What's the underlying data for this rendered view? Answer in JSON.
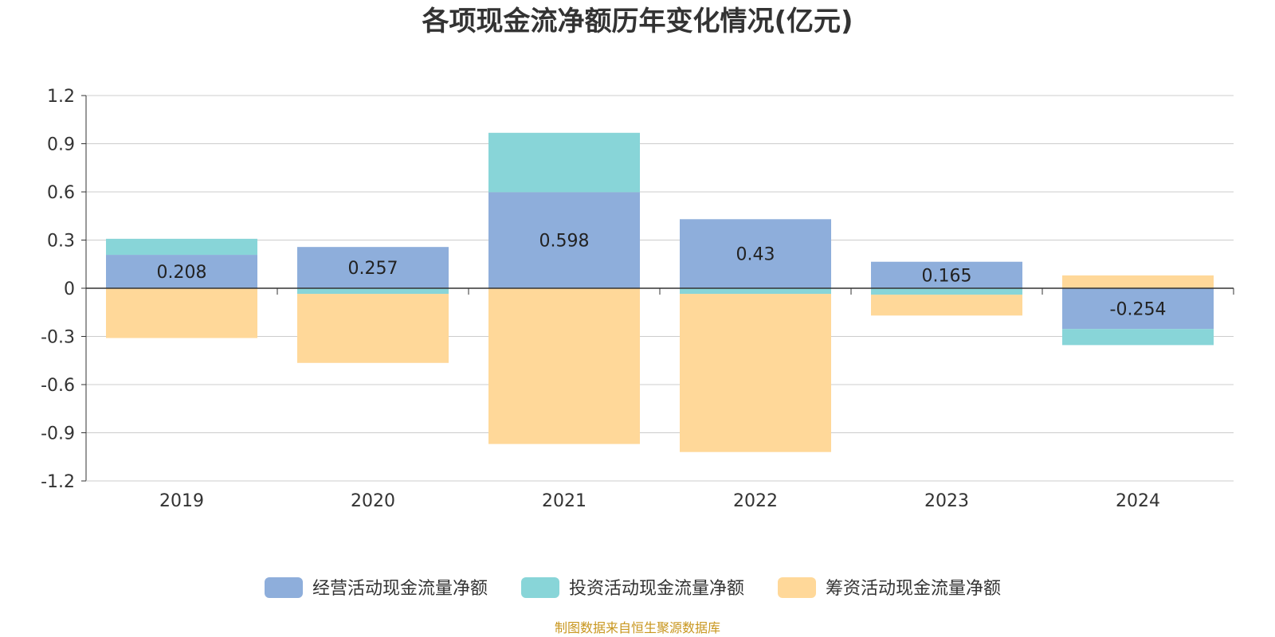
{
  "chart_data": {
    "type": "bar",
    "stacked": true,
    "title": "各项现金流净额历年变化情况(亿元)",
    "categories": [
      "2019",
      "2020",
      "2021",
      "2022",
      "2023",
      "2024"
    ],
    "series": [
      {
        "name": "经营活动现金流量净额",
        "color": "#8eaedb",
        "values": [
          0.208,
          0.257,
          0.598,
          0.43,
          0.165,
          -0.254
        ],
        "labels": [
          "0.208",
          "0.257",
          "0.598",
          "0.43",
          "0.165",
          "-0.254"
        ]
      },
      {
        "name": "投资活动现金流量净额",
        "color": "#88d5d8",
        "values": [
          0.1,
          -0.035,
          0.37,
          -0.035,
          -0.04,
          -0.1
        ]
      },
      {
        "name": "筹资活动现金流量净额",
        "color": "#ffd899",
        "values": [
          -0.31,
          -0.43,
          -0.97,
          -0.985,
          -0.13,
          0.08
        ]
      }
    ],
    "ylim": [
      -1.2,
      1.2
    ],
    "yticks": [
      "1.2",
      "0.9",
      "0.6",
      "0.3",
      "0",
      "-0.3",
      "-0.6",
      "-0.9",
      "-1.2"
    ],
    "ytick_values": [
      1.2,
      0.9,
      0.6,
      0.3,
      0,
      -0.3,
      -0.6,
      -0.9,
      -1.2
    ],
    "grid": true,
    "legend_position": "bottom"
  },
  "source_note": "制图数据来自恒生聚源数据库"
}
